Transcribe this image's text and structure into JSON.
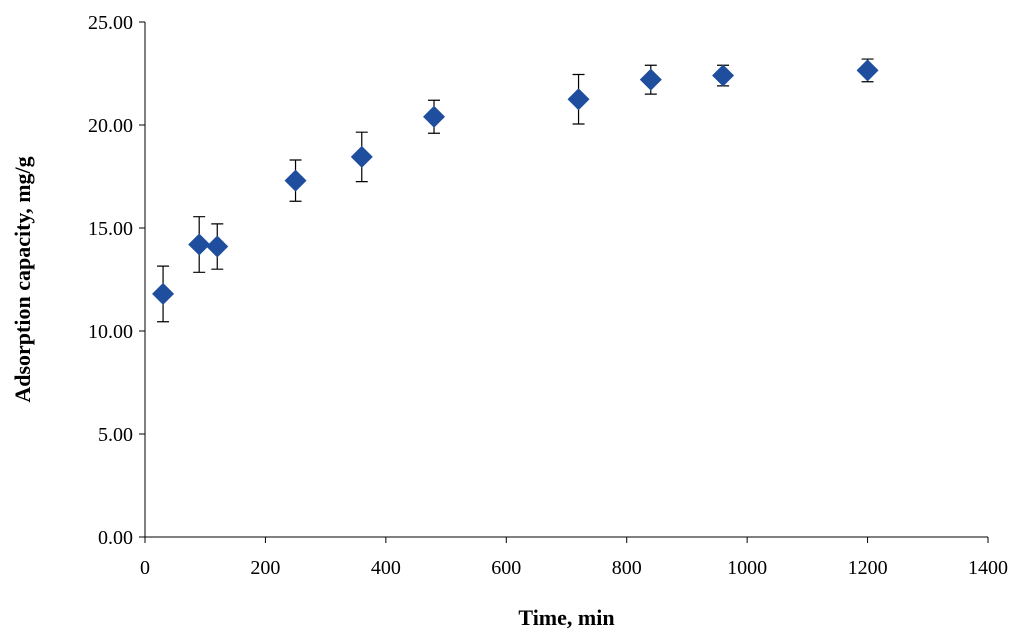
{
  "chart_data": {
    "type": "scatter",
    "xlabel": "Time, min",
    "ylabel": "Adsorption capacity, mg/g",
    "xlim": [
      0,
      1400
    ],
    "ylim": [
      0,
      25
    ],
    "x_ticks": [
      "0",
      "200",
      "400",
      "600",
      "800",
      "1000",
      "1200",
      "1400"
    ],
    "y_ticks": [
      "0.00",
      "5.00",
      "10.00",
      "15.00",
      "20.00",
      "25.00"
    ],
    "grid": false,
    "legend": "none",
    "marker": "diamond",
    "color": "#1F4E9E",
    "points": [
      {
        "x": 30,
        "y": 11.8,
        "err": 1.35
      },
      {
        "x": 90,
        "y": 14.2,
        "err": 1.35
      },
      {
        "x": 120,
        "y": 14.1,
        "err": 1.1
      },
      {
        "x": 250,
        "y": 17.3,
        "err": 1.0
      },
      {
        "x": 360,
        "y": 18.45,
        "err": 1.2
      },
      {
        "x": 480,
        "y": 20.4,
        "err": 0.8
      },
      {
        "x": 720,
        "y": 21.25,
        "err": 1.2
      },
      {
        "x": 840,
        "y": 22.2,
        "err": 0.7
      },
      {
        "x": 960,
        "y": 22.4,
        "err": 0.5
      },
      {
        "x": 1200,
        "y": 22.65,
        "err": 0.55
      }
    ]
  }
}
